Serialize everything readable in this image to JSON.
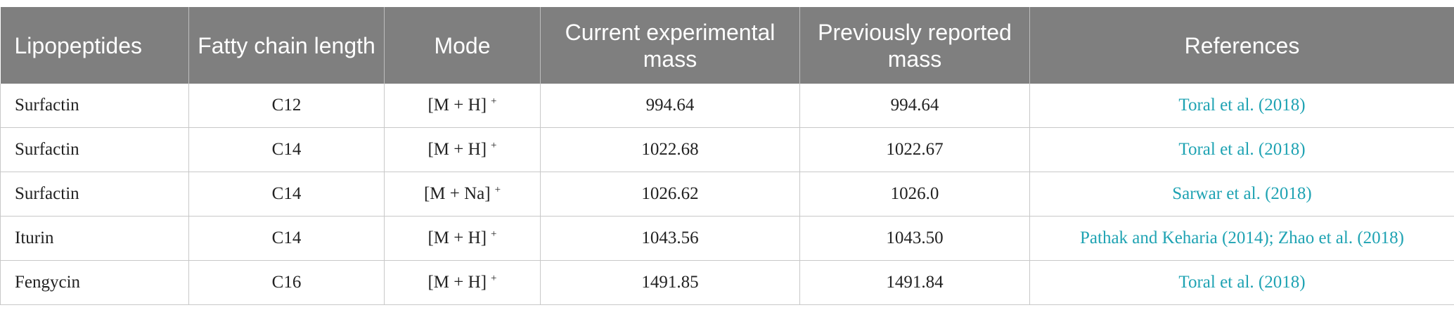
{
  "table": {
    "columns": [
      "Lipopeptides",
      "Fatty chain length",
      "Mode",
      "Current experimental mass",
      "Previously reported mass",
      "References"
    ],
    "rows": [
      [
        "Surfactin",
        "C12",
        {
          "ion": "[M + H]",
          "charge": "+"
        },
        "994.64",
        "994.64",
        "Toral et al. (2018)"
      ],
      [
        "Surfactin",
        "C14",
        {
          "ion": "[M + H]",
          "charge": "+"
        },
        "1022.68",
        "1022.67",
        "Toral et al. (2018)"
      ],
      [
        "Surfactin",
        "C14",
        {
          "ion": "[M + Na]",
          "charge": "+"
        },
        "1026.62",
        "1026.0",
        "Sarwar et al. (2018)"
      ],
      [
        "Iturin",
        "C14",
        {
          "ion": "[M + H]",
          "charge": "+"
        },
        "1043.56",
        "1043.50",
        "Pathak and Keharia (2014); Zhao et al. (2018)"
      ],
      [
        "Fengycin",
        "C16",
        {
          "ion": "[M + H]",
          "charge": "+"
        },
        "1491.85",
        "1491.84",
        "Toral et al. (2018)"
      ]
    ]
  }
}
